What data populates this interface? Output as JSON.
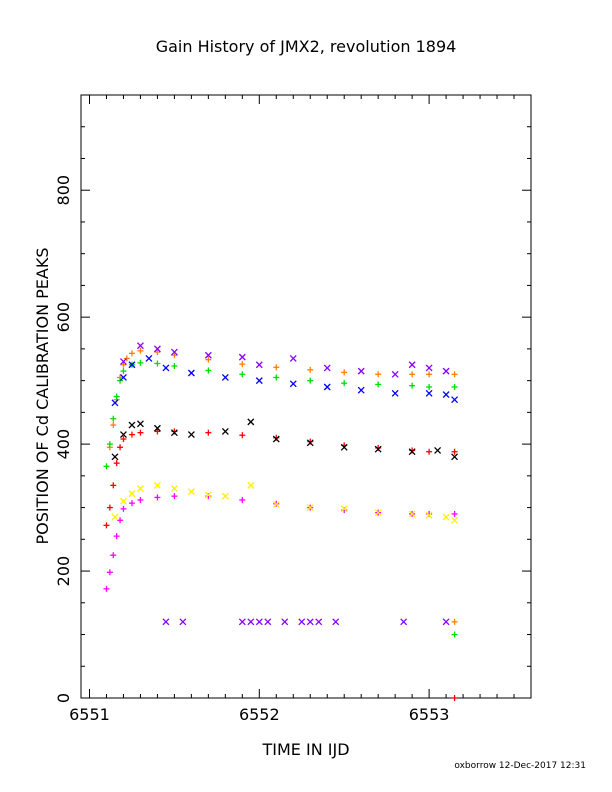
{
  "chart_data": {
    "type": "scatter",
    "title": "Gain History of JMX2, revolution 1894",
    "xlabel": "TIME IN IJD",
    "ylabel": "POSITION OF Cd CALIBRATION PEAKS",
    "xlim": [
      6550.95,
      6553.6
    ],
    "ylim": [
      0,
      950
    ],
    "xticks": [
      6551,
      6552,
      6553
    ],
    "yticks": [
      0,
      200,
      400,
      600,
      800
    ],
    "grid": false,
    "legend": "none",
    "credit": "oxborrow 12-Dec-2017 12:31",
    "series": [
      {
        "color": "#ff7f00",
        "marker": "plus",
        "x": [
          6551.12,
          6551.14,
          6551.16,
          6551.18,
          6551.2,
          6551.22,
          6551.25,
          6551.3,
          6551.4,
          6551.5,
          6551.7,
          6551.9,
          6552.1,
          6552.3,
          6552.5,
          6552.7,
          6552.9,
          6553.0,
          6553.15
        ],
        "y": [
          395,
          430,
          470,
          505,
          525,
          535,
          543,
          547,
          545,
          540,
          533,
          526,
          521,
          517,
          513,
          510,
          510,
          510,
          510
        ]
      },
      {
        "color": "#00dd00",
        "marker": "plus",
        "x": [
          6551.1,
          6551.12,
          6551.14,
          6551.16,
          6551.18,
          6551.2,
          6551.25,
          6551.3,
          6551.4,
          6551.5,
          6551.7,
          6551.9,
          6552.1,
          6552.3,
          6552.5,
          6552.7,
          6552.9,
          6553.0,
          6553.15
        ],
        "y": [
          365,
          400,
          440,
          475,
          500,
          515,
          525,
          528,
          527,
          523,
          516,
          510,
          505,
          500,
          496,
          494,
          492,
          490,
          490
        ]
      },
      {
        "color": "#0000ff",
        "marker": "cross",
        "x": [
          6551.15,
          6551.2,
          6551.25,
          6551.35,
          6551.45,
          6551.6,
          6551.8,
          6552.0,
          6552.2,
          6552.4,
          6552.6,
          6552.8,
          6553.0,
          6553.1,
          6553.15
        ],
        "y": [
          465,
          505,
          525,
          535,
          520,
          512,
          505,
          500,
          495,
          490,
          485,
          480,
          480,
          478,
          470
        ]
      },
      {
        "color": "#8800ff",
        "marker": "cross",
        "x": [
          6551.2,
          6551.3,
          6551.4,
          6551.5,
          6551.7,
          6551.9,
          6552.0,
          6552.2,
          6552.4,
          6552.6,
          6552.8,
          6552.9,
          6553.0,
          6553.1
        ],
        "y": [
          530,
          555,
          550,
          545,
          540,
          537,
          525,
          535,
          520,
          515,
          510,
          525,
          520,
          515
        ]
      },
      {
        "color": "#ff0000",
        "marker": "plus",
        "x": [
          6551.1,
          6551.12,
          6551.14,
          6551.16,
          6551.18,
          6551.2,
          6551.25,
          6551.3,
          6551.4,
          6551.5,
          6551.7,
          6551.9,
          6552.1,
          6552.3,
          6552.5,
          6552.7,
          6552.9,
          6553.0,
          6553.15
        ],
        "y": [
          272,
          300,
          335,
          370,
          395,
          408,
          415,
          418,
          420,
          420,
          418,
          414,
          410,
          404,
          398,
          394,
          390,
          388,
          388
        ]
      },
      {
        "color": "#000000",
        "marker": "cross",
        "x": [
          6551.15,
          6551.2,
          6551.25,
          6551.3,
          6551.4,
          6551.5,
          6551.6,
          6551.8,
          6551.95,
          6552.1,
          6552.3,
          6552.5,
          6552.7,
          6552.9,
          6553.05,
          6553.15
        ],
        "y": [
          380,
          415,
          430,
          432,
          425,
          418,
          415,
          420,
          435,
          408,
          402,
          395,
          392,
          388,
          390,
          380
        ]
      },
      {
        "color": "#ff00ff",
        "marker": "plus",
        "x": [
          6551.1,
          6551.12,
          6551.14,
          6551.16,
          6551.18,
          6551.2,
          6551.25,
          6551.3,
          6551.4,
          6551.5,
          6551.7,
          6551.9,
          6552.1,
          6552.3,
          6552.5,
          6552.7,
          6552.9,
          6553.0,
          6553.15
        ],
        "y": [
          172,
          198,
          225,
          255,
          280,
          298,
          307,
          312,
          316,
          318,
          318,
          312,
          306,
          300,
          296,
          292,
          290,
          290,
          290
        ]
      },
      {
        "color": "#ffee00",
        "marker": "cross",
        "x": [
          6551.15,
          6551.2,
          6551.25,
          6551.3,
          6551.4,
          6551.5,
          6551.6,
          6551.7,
          6551.8,
          6551.95,
          6552.1,
          6552.3,
          6552.5,
          6552.7,
          6552.9,
          6553.0,
          6553.1,
          6553.15
        ],
        "y": [
          285,
          310,
          322,
          330,
          335,
          330,
          325,
          320,
          318,
          335,
          305,
          300,
          298,
          292,
          290,
          288,
          285,
          280
        ]
      },
      {
        "color": "#8800ff",
        "marker": "cross",
        "x": [
          6551.45,
          6551.55,
          6551.9,
          6551.95,
          6552.0,
          6552.05,
          6552.15,
          6552.25,
          6552.3,
          6552.35,
          6552.45,
          6552.85,
          6553.1
        ],
        "y": [
          120,
          120,
          120,
          120,
          120,
          120,
          120,
          120,
          120,
          120,
          120,
          120,
          120
        ]
      },
      {
        "color": "#00dd00",
        "marker": "plus",
        "x": [
          6553.15
        ],
        "y": [
          100
        ]
      },
      {
        "color": "#ff7f00",
        "marker": "plus",
        "x": [
          6553.15
        ],
        "y": [
          120
        ]
      },
      {
        "color": "#ff0000",
        "marker": "plus",
        "x": [
          6553.15
        ],
        "y": [
          0
        ]
      }
    ]
  }
}
